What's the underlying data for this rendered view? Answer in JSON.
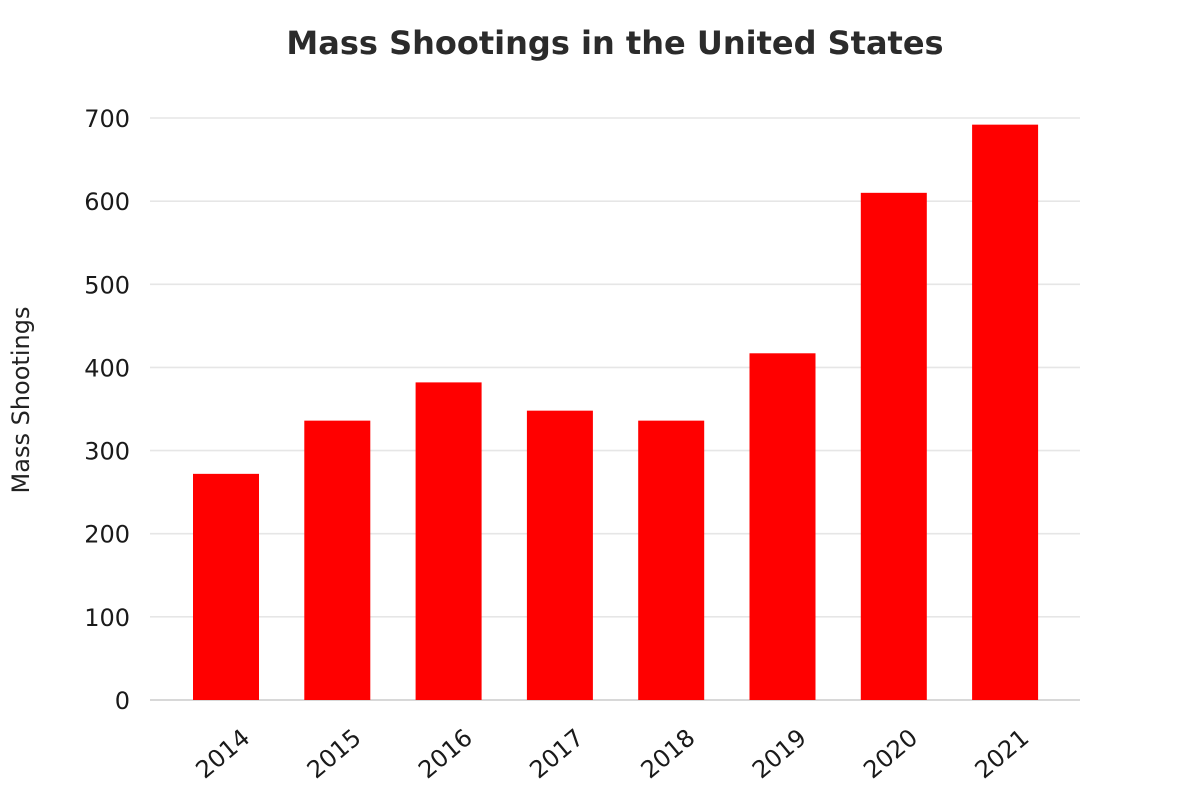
{
  "chart_data": {
    "type": "bar",
    "title": "Mass Shootings in the United States",
    "xlabel": "",
    "ylabel": "Mass Shootings",
    "categories": [
      "2014",
      "2015",
      "2016",
      "2017",
      "2018",
      "2019",
      "2020",
      "2021"
    ],
    "values": [
      272,
      336,
      382,
      348,
      336,
      417,
      610,
      692
    ],
    "ylim": [
      0,
      700
    ],
    "yticks": [
      0,
      100,
      200,
      300,
      400,
      500,
      600,
      700
    ],
    "grid": true,
    "bar_color": "#ff0000",
    "legend": "none"
  }
}
